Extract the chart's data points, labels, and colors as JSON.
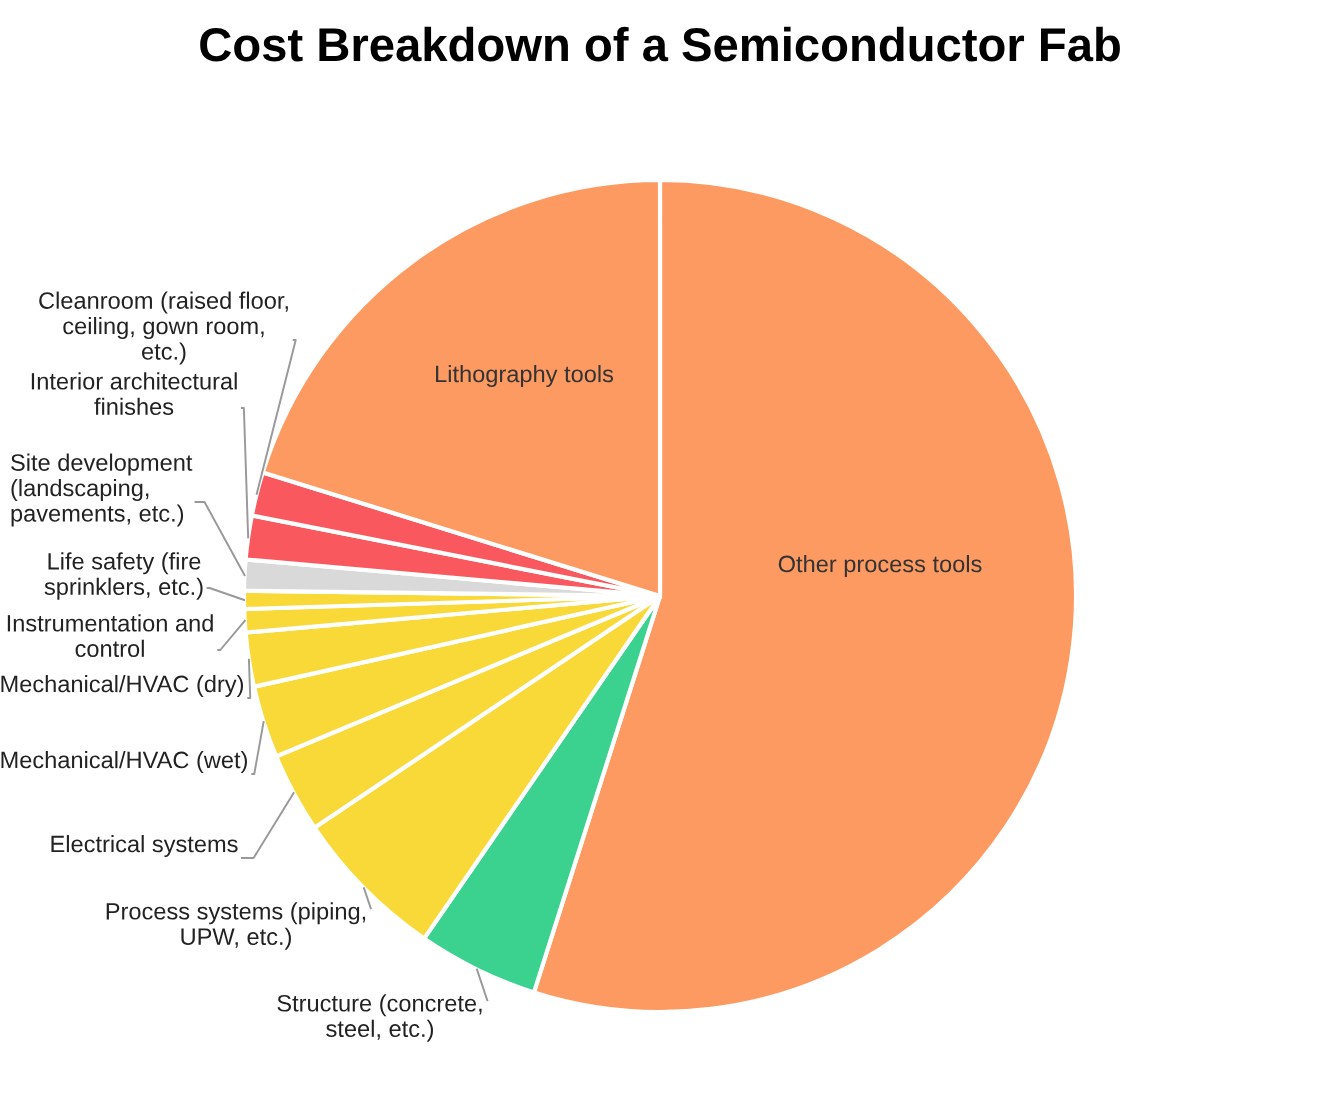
{
  "chart_data": {
    "type": "pie",
    "title": "Cost Breakdown of a Semiconductor Fab",
    "categories": [
      "Other process tools",
      "Structure (concrete, steel, etc.)",
      "Process systems (piping, UPW, etc.)",
      "Electrical systems",
      "Mechanical/HVAC (wet)",
      "Mechanical/HVAC (dry)",
      "Instrumentation and control",
      "Life safety (fire sprinklers, etc.)",
      "Site development (landscaping, pavements, etc.)",
      "Interior architectural finishes",
      "Cleanroom (raised floor, ceiling, gown room, etc.)",
      "Lithography tools"
    ],
    "values": [
      54.9,
      4.7,
      6.0,
      3.1,
      2.8,
      2.1,
      0.9,
      0.7,
      1.2,
      1.7,
      1.7,
      20.2
    ],
    "colors": [
      "#fd9a62",
      "#3bd18f",
      "#f9d937",
      "#f9d937",
      "#f9d937",
      "#f9d937",
      "#f9d937",
      "#f9d937",
      "#d9d9d9",
      "#f9585e",
      "#f9585e",
      "#fd9a62"
    ]
  }
}
